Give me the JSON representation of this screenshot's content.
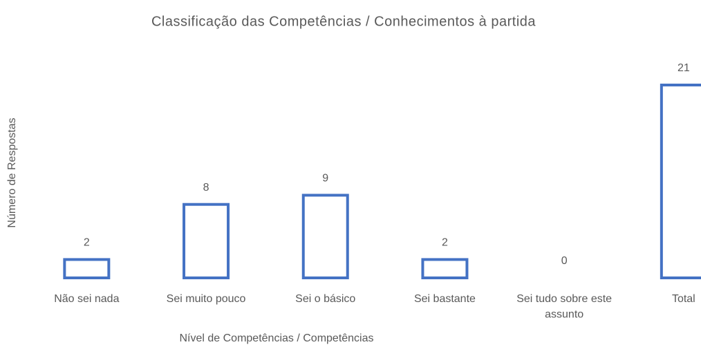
{
  "chart_data": {
    "type": "bar",
    "title": "Classificação das Competências / Conhecimentos à partida",
    "x_label": "Nível de Competências / Competências",
    "y_label": "Número de Respostas",
    "categories": [
      "Não sei nada",
      "Sei muito pouco",
      "Sei o básico",
      "Sei bastante",
      "Sei tudo sobre este assunto",
      "Total"
    ],
    "values": [
      2,
      8,
      9,
      2,
      0,
      21
    ],
    "color": "#4472c4"
  }
}
